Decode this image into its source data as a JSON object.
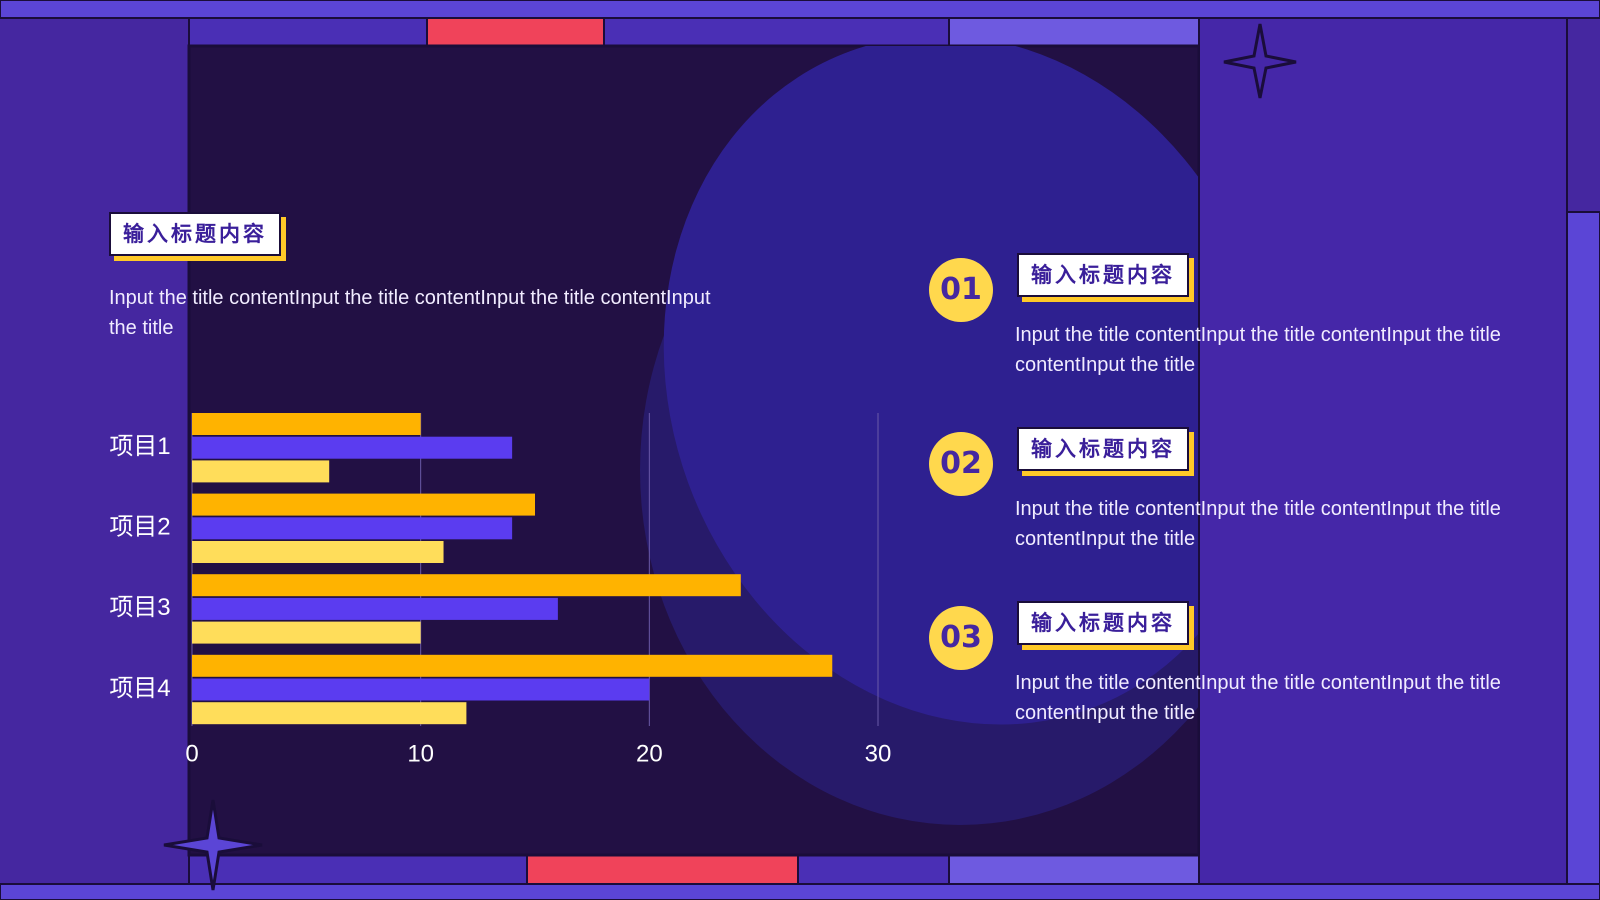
{
  "header": {
    "title": "输入标题内容",
    "text": "Input the title contentInput the title contentInput the title contentInput the title"
  },
  "items": [
    {
      "number": "01",
      "title": "输入标题内容",
      "text": "Input the title contentInput the title contentInput the title contentInput the title"
    },
    {
      "number": "02",
      "title": "输入标题内容",
      "text": "Input the title contentInput the title contentInput the title contentInput the title"
    },
    {
      "number": "03",
      "title": "输入标题内容",
      "text": "Input the title contentInput the title contentInput the title contentInput the title"
    }
  ],
  "chart_data": {
    "type": "bar",
    "orientation": "horizontal",
    "categories": [
      "项目1",
      "项目2",
      "项目3",
      "项目4"
    ],
    "series": [
      {
        "color": "#ffb300",
        "values": [
          10,
          15,
          24,
          28
        ]
      },
      {
        "color": "#5b3cf0",
        "values": [
          14,
          14,
          16,
          20
        ]
      },
      {
        "color": "#ffdd5a",
        "values": [
          6,
          11,
          10,
          12
        ]
      }
    ],
    "xlim": [
      0,
      30
    ],
    "xticks": [
      0,
      10,
      20,
      30
    ],
    "grid": true
  }
}
